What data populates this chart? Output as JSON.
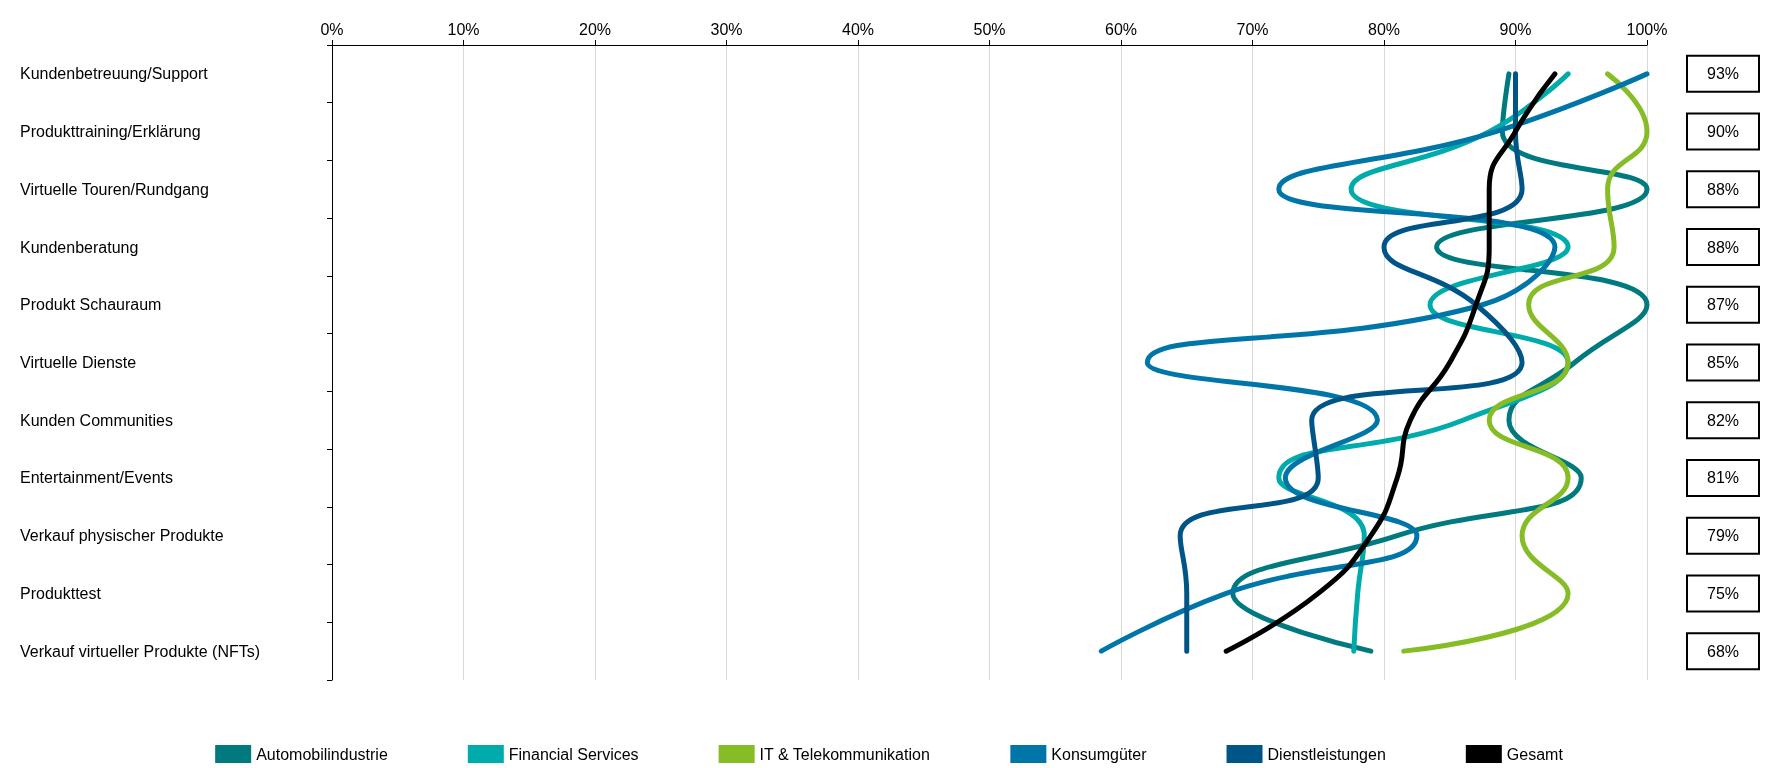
{
  "chart_data": {
    "type": "line",
    "categories": [
      "Kundenbetreuung/Support",
      "Produkttraining/Erklärung",
      "Virtuelle Touren/Rundgang",
      "Kundenberatung",
      "Produkt Schauraum",
      "Virtuelle Dienste",
      "Kunden Communities",
      "Entertainment/Events",
      "Verkauf physischer Produkte",
      "Produkttest",
      "Verkauf virtueller Produkte (NFTs)"
    ],
    "orientation": "horizontal",
    "xlim": [
      0,
      100
    ],
    "xticks": [
      {
        "value": 0,
        "label": "0%"
      },
      {
        "value": 10,
        "label": "10%"
      },
      {
        "value": 20,
        "label": "20%"
      },
      {
        "value": 30,
        "label": "30%"
      },
      {
        "value": 40,
        "label": "40%"
      },
      {
        "value": 50,
        "label": "50%"
      },
      {
        "value": 60,
        "label": "60%"
      },
      {
        "value": 70,
        "label": "70%"
      },
      {
        "value": 80,
        "label": "80%"
      },
      {
        "value": 90,
        "label": "90%"
      },
      {
        "value": 100,
        "label": "100%"
      }
    ],
    "grid": "x",
    "legend": "bottom",
    "marker": "none",
    "line_style": "solid",
    "series": [
      {
        "name": "Automobilindustrie",
        "color": "#007a7e",
        "values": [
          89.5,
          89,
          100,
          84,
          100,
          94.5,
          89.5,
          95,
          81,
          68.5,
          79
        ]
      },
      {
        "name": "Financial Services",
        "color": "#00abab",
        "values": [
          94,
          88,
          77.5,
          94,
          83.5,
          94,
          86,
          72,
          78.5,
          78,
          77.7
        ]
      },
      {
        "name": "IT & Telekommunikation",
        "color": "#86bc25",
        "values": [
          97,
          100,
          97,
          97.5,
          91,
          94,
          88,
          94,
          90.5,
          94,
          81.5
        ]
      },
      {
        "name": "Konsumgüter",
        "color": "#0076a8",
        "values": [
          100,
          88.5,
          72,
          93,
          87.5,
          62,
          79.5,
          72.5,
          82.5,
          68,
          58.5
        ]
      },
      {
        "name": "Dienstleistungen",
        "color": "#005587",
        "values": [
          90,
          90,
          90.5,
          80,
          87,
          90.5,
          74.5,
          75,
          64.5,
          65,
          65
        ]
      },
      {
        "name": "Gesamt",
        "color": "#000000",
        "values": [
          93,
          90,
          88,
          88,
          87,
          85,
          82,
          81,
          79,
          75,
          68
        ],
        "value_labels": [
          "93%",
          "90%",
          "88%",
          "88%",
          "87%",
          "85%",
          "82%",
          "81%",
          "79%",
          "75%",
          "68%"
        ]
      }
    ]
  }
}
